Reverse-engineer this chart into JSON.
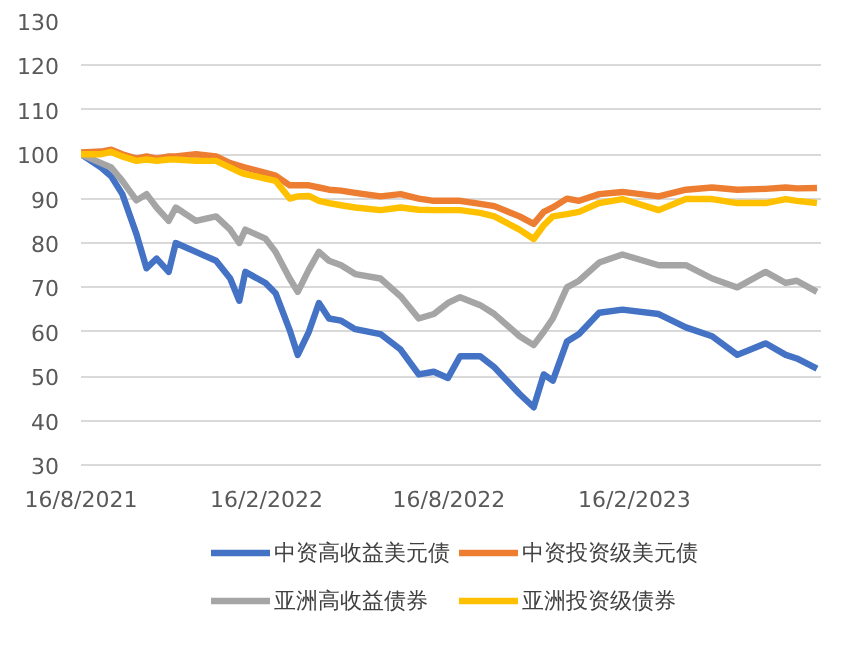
{
  "chart_data": {
    "type": "line",
    "x": [
      "2021-08-16",
      "2021-09-05",
      "2021-09-15",
      "2021-09-26",
      "2021-10-10",
      "2021-10-20",
      "2021-10-30",
      "2021-11-11",
      "2021-11-18",
      "2021-12-08",
      "2021-12-28",
      "2022-01-11",
      "2022-01-20",
      "2022-01-26",
      "2022-02-15",
      "2022-02-25",
      "2022-03-11",
      "2022-03-19",
      "2022-03-30",
      "2022-04-09",
      "2022-04-19",
      "2022-05-01",
      "2022-05-15",
      "2022-06-09",
      "2022-06-29",
      "2022-07-17",
      "2022-08-01",
      "2022-08-15",
      "2022-08-27",
      "2022-09-16",
      "2022-09-30",
      "2022-10-25",
      "2022-11-08",
      "2022-11-18",
      "2022-11-27",
      "2022-12-11",
      "2022-12-23",
      "2023-01-12",
      "2023-02-04",
      "2023-03-12",
      "2023-04-08",
      "2023-05-04",
      "2023-05-29",
      "2023-06-26",
      "2023-07-16",
      "2023-07-27",
      "2023-08-16"
    ],
    "series": [
      {
        "name": "中资高收益美元债",
        "color": "#4472c4",
        "values": [
          100,
          97,
          95,
          91,
          82,
          74.3,
          76.5,
          73.5,
          80,
          78,
          76,
          72,
          67,
          73.5,
          71,
          68.7,
          60.4,
          54.8,
          60,
          66.5,
          63,
          62.5,
          60.6,
          59.5,
          56,
          50.4,
          51,
          49.6,
          54.5,
          54.5,
          52,
          46,
          43,
          50.4,
          49,
          57.8,
          59.5,
          64.3,
          65,
          64,
          61,
          59,
          54.8,
          57.4,
          54.8,
          54,
          51.7
        ]
      },
      {
        "name": "中资投资级美元债",
        "color": "#ed7d31",
        "values": [
          100.4,
          100.6,
          101,
          100,
          99,
          99.5,
          99,
          99.5,
          99.5,
          100,
          99.5,
          98,
          97.4,
          97,
          95.8,
          95.2,
          93,
          93,
          93,
          92.5,
          92,
          91.8,
          91.3,
          90.5,
          91,
          90,
          89.5,
          89.5,
          89.5,
          88.8,
          88.3,
          86,
          84.3,
          87,
          88,
          90,
          89.5,
          91,
          91.5,
          90.5,
          92,
          92.5,
          92,
          92.2,
          92.5,
          92.3,
          92.4
        ]
      },
      {
        "name": "亚洲高收益债券",
        "color": "#a5a5a5",
        "values": [
          100,
          98,
          97,
          94,
          89.6,
          91,
          88,
          85,
          88,
          85,
          86,
          83,
          80,
          83,
          81,
          78,
          72,
          69,
          74,
          78,
          76,
          75,
          73,
          72,
          68,
          63,
          64,
          66.5,
          67.8,
          66,
          64,
          59,
          57,
          60,
          63,
          70,
          71.5,
          75.6,
          77.4,
          75,
          75,
          72,
          70,
          73.5,
          71,
          71.5,
          69
        ]
      },
      {
        "name": "亚洲投资级债券",
        "color": "#ffc000",
        "values": [
          100,
          100,
          100.5,
          99.5,
          98.5,
          98.8,
          98.5,
          98.8,
          98.8,
          98.5,
          98.5,
          97,
          96,
          95.5,
          94.5,
          94,
          90,
          90.5,
          90.6,
          89.5,
          89,
          88.5,
          88,
          87.4,
          88,
          87.5,
          87.4,
          87.4,
          87.4,
          86.8,
          86,
          83,
          80.9,
          84,
          86,
          86.5,
          87,
          89,
          89.9,
          87.4,
          89.9,
          89.9,
          89,
          89,
          89.9,
          89.5,
          89
        ]
      }
    ],
    "xlim": [
      "2021-08-16",
      "2023-08-20"
    ],
    "xticks": [
      {
        "value": "2021-08-16",
        "label": "16/8/2021"
      },
      {
        "value": "2022-02-16",
        "label": "16/2/2022"
      },
      {
        "value": "2022-08-16",
        "label": "16/8/2022"
      },
      {
        "value": "2023-02-16",
        "label": "16/2/2023"
      }
    ],
    "ylim": [
      30,
      130
    ],
    "yticks": [
      30,
      40,
      50,
      60,
      70,
      80,
      90,
      100,
      110,
      120,
      130
    ],
    "grid": "y",
    "legend": "bottom",
    "line_style": "solid",
    "marker": "none"
  }
}
